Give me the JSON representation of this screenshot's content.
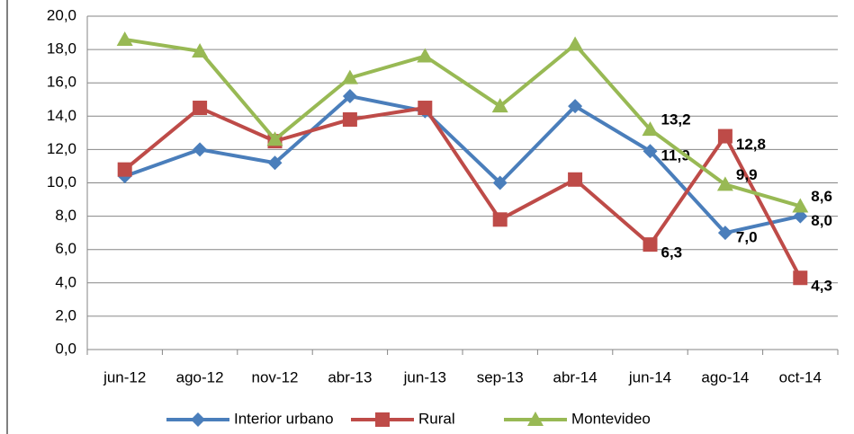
{
  "chart_data": {
    "type": "line",
    "categories": [
      "jun-12",
      "ago-12",
      "nov-12",
      "abr-13",
      "jun-13",
      "sep-13",
      "abr-14",
      "jun-14",
      "ago-14",
      "oct-14"
    ],
    "series": [
      {
        "name": "Interior urbano",
        "color": "#4a7ebb",
        "marker": "diamond",
        "label_color": "#1f3864",
        "values": [
          10.4,
          12.0,
          11.2,
          15.2,
          14.3,
          10.0,
          14.6,
          11.9,
          7.0,
          8.0
        ],
        "value_labels": [
          null,
          null,
          null,
          null,
          null,
          null,
          null,
          "11,9",
          "7,0",
          "8,0"
        ]
      },
      {
        "name": "Rural",
        "color": "#be4b48",
        "marker": "square",
        "label_color": "#c0504d",
        "values": [
          10.8,
          14.5,
          12.5,
          13.8,
          14.5,
          7.8,
          10.2,
          6.3,
          12.8,
          4.3
        ],
        "value_labels": [
          null,
          null,
          null,
          null,
          null,
          null,
          null,
          "6,3",
          "12,8",
          "4,3"
        ]
      },
      {
        "name": "Montevideo",
        "color": "#98b954",
        "marker": "triangle",
        "label_color": "#4f6228",
        "values": [
          18.6,
          17.9,
          12.6,
          16.3,
          17.6,
          14.6,
          18.3,
          13.2,
          9.9,
          8.6
        ],
        "value_labels": [
          null,
          null,
          null,
          null,
          null,
          null,
          null,
          "13,2",
          "9,9",
          "8,6"
        ]
      }
    ],
    "ylim": [
      0,
      20
    ],
    "yticks": [
      {
        "value": 0,
        "label": "0,0"
      },
      {
        "value": 2,
        "label": "2,0"
      },
      {
        "value": 4,
        "label": "4,0"
      },
      {
        "value": 6,
        "label": "6,0"
      },
      {
        "value": 8,
        "label": "8,0"
      },
      {
        "value": 10,
        "label": "10,0"
      },
      {
        "value": 12,
        "label": "12,0"
      },
      {
        "value": 14,
        "label": "14,0"
      },
      {
        "value": 16,
        "label": "16,0"
      },
      {
        "value": 18,
        "label": "18,0"
      },
      {
        "value": 20,
        "label": "20,0"
      }
    ],
    "grid": true,
    "legend": "bottom"
  }
}
